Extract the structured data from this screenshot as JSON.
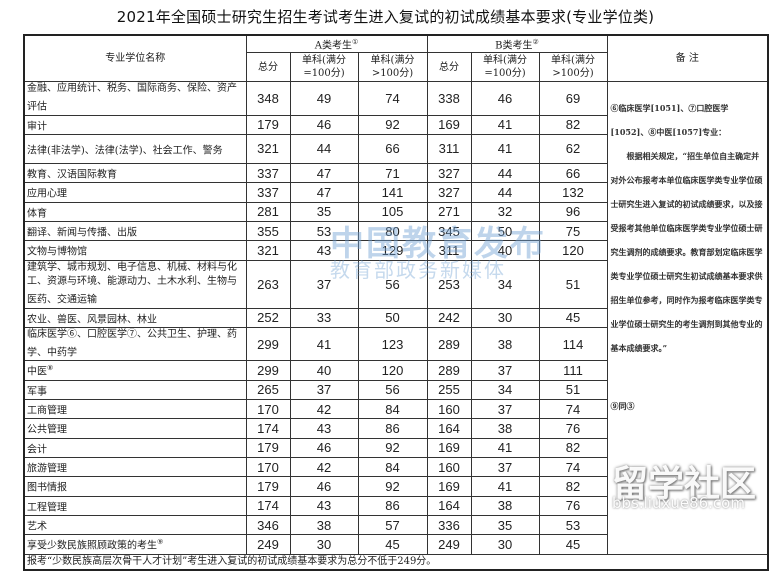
{
  "title": "2021年全国硕士研究生招生考试考生进入复试的初试成绩基本要求(专业学位类)",
  "headers": {
    "name": "专业学位名称",
    "group_a": "A类考生",
    "group_a_mark": "①",
    "group_b": "B类考生",
    "group_b_mark": "②",
    "total": "总分",
    "single100": "单科(满分=100分)",
    "single_gt100": "单科(满分>100分)",
    "notes": "备 注"
  },
  "rows": [
    {
      "name": "金融、应用统计、税务、国际商务、保险、资产评估",
      "mark": "",
      "a": [
        "348",
        "49",
        "74"
      ],
      "b": [
        "338",
        "46",
        "69"
      ]
    },
    {
      "name": "审计",
      "mark": "",
      "a": [
        "179",
        "46",
        "92"
      ],
      "b": [
        "169",
        "41",
        "82"
      ]
    },
    {
      "name": "法律(非法学)、法律(法学)、社会工作、警务",
      "mark": "",
      "a": [
        "321",
        "44",
        "66"
      ],
      "b": [
        "311",
        "41",
        "62"
      ]
    },
    {
      "name": "教育、汉语国际教育",
      "mark": "",
      "a": [
        "337",
        "47",
        "71"
      ],
      "b": [
        "327",
        "44",
        "66"
      ]
    },
    {
      "name": "应用心理",
      "mark": "",
      "a": [
        "337",
        "47",
        "141"
      ],
      "b": [
        "327",
        "44",
        "132"
      ]
    },
    {
      "name": "体育",
      "mark": "",
      "a": [
        "281",
        "35",
        "105"
      ],
      "b": [
        "271",
        "32",
        "96"
      ]
    },
    {
      "name": "翻译、新闻与传播、出版",
      "mark": "",
      "a": [
        "355",
        "53",
        "80"
      ],
      "b": [
        "345",
        "50",
        "75"
      ]
    },
    {
      "name": "文物与博物馆",
      "mark": "",
      "a": [
        "321",
        "43",
        "129"
      ],
      "b": [
        "311",
        "40",
        "120"
      ]
    },
    {
      "name": "建筑学、城市规划、电子信息、机械、材料与化工、资源与环境、能源动力、土木水利、生物与医药、交通运输",
      "mark": "",
      "a": [
        "263",
        "37",
        "56"
      ],
      "b": [
        "253",
        "34",
        "51"
      ]
    },
    {
      "name": "农业、兽医、风景园林、林业",
      "mark": "",
      "a": [
        "252",
        "33",
        "50"
      ],
      "b": [
        "242",
        "30",
        "45"
      ]
    },
    {
      "name": "临床医学⑥、口腔医学⑦、公共卫生、护理、药学、中药学",
      "mark": "",
      "a": [
        "299",
        "41",
        "123"
      ],
      "b": [
        "289",
        "38",
        "114"
      ]
    },
    {
      "name": "中医",
      "mark": "⑧",
      "a": [
        "299",
        "40",
        "120"
      ],
      "b": [
        "289",
        "37",
        "111"
      ]
    },
    {
      "name": "军事",
      "mark": "",
      "a": [
        "265",
        "37",
        "56"
      ],
      "b": [
        "255",
        "34",
        "51"
      ]
    },
    {
      "name": "工商管理",
      "mark": "",
      "a": [
        "170",
        "42",
        "84"
      ],
      "b": [
        "160",
        "37",
        "74"
      ]
    },
    {
      "name": "公共管理",
      "mark": "",
      "a": [
        "174",
        "43",
        "86"
      ],
      "b": [
        "164",
        "38",
        "76"
      ]
    },
    {
      "name": "会计",
      "mark": "",
      "a": [
        "179",
        "46",
        "92"
      ],
      "b": [
        "169",
        "41",
        "82"
      ]
    },
    {
      "name": "旅游管理",
      "mark": "",
      "a": [
        "170",
        "42",
        "84"
      ],
      "b": [
        "160",
        "37",
        "74"
      ]
    },
    {
      "name": "图书情报",
      "mark": "",
      "a": [
        "179",
        "46",
        "92"
      ],
      "b": [
        "169",
        "41",
        "82"
      ]
    },
    {
      "name": "工程管理",
      "mark": "",
      "a": [
        "174",
        "43",
        "86"
      ],
      "b": [
        "164",
        "38",
        "76"
      ]
    },
    {
      "name": "艺术",
      "mark": "",
      "a": [
        "346",
        "38",
        "57"
      ],
      "b": [
        "336",
        "35",
        "53"
      ]
    },
    {
      "name": "享受少数民族照顾政策的考生",
      "mark": "⑨",
      "a": [
        "249",
        "30",
        "45"
      ],
      "b": [
        "249",
        "30",
        "45"
      ]
    }
  ],
  "notes": {
    "line1": "⑥临床医学[1051]、⑦口腔医学[1052]、⑧中医[1057]专业：",
    "line2": "根据相关规定，“招生单位自主确定并对外公布报考本单位临床医学类专业学位硕士研究生进入复试的初试成绩要求，以及接受报考其他单位临床医学类专业学位硕士研究生调剂的成绩要求。教育部划定临床医学类专业学位硕士研究生初试成绩基本要求供招生单位参考，同时作为报考临床医学类专业学位硕士研究生的考生调剂到其他专业的基本成绩要求。”",
    "line3": "⑨同③"
  },
  "footnote": "报考“少数民族高层次骨干人才计划”考生进入复试的初试成绩基本要求为总分不低于249分。",
  "watermarks": {
    "center_line1": "中国教育发布",
    "center_line2": "教育部政务新媒体",
    "corner_line1": "留学社区",
    "corner_line2": "bbs.liuxue86.com"
  }
}
